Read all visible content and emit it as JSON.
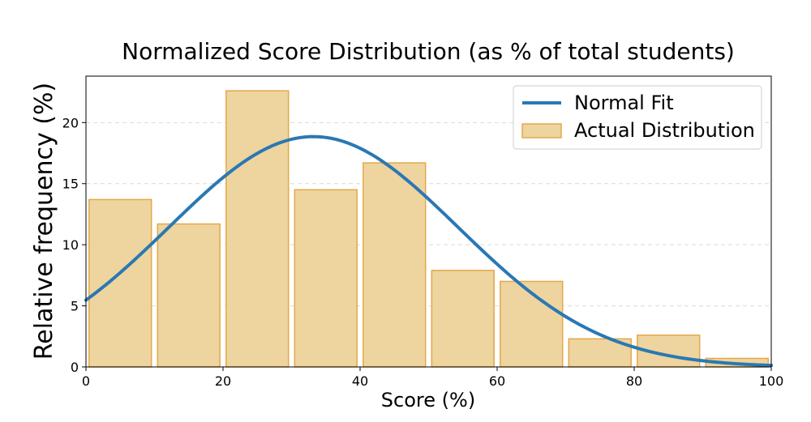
{
  "chart_data": {
    "type": "bar",
    "title": "Normalized Score Distribution (as % of total students)",
    "xlabel": "Score (%)",
    "ylabel": "Relative frequency (%)",
    "xlim": [
      0,
      100
    ],
    "ylim": [
      0,
      23.8
    ],
    "xticks": [
      0,
      20,
      40,
      60,
      80,
      100
    ],
    "yticks": [
      0,
      5,
      10,
      15,
      20
    ],
    "grid": "horizontal dashed",
    "legend_position": "top-right",
    "bins": [
      [
        0,
        10
      ],
      [
        10,
        20
      ],
      [
        20,
        30
      ],
      [
        30,
        40
      ],
      [
        40,
        50
      ],
      [
        50,
        60
      ],
      [
        60,
        70
      ],
      [
        70,
        80
      ],
      [
        80,
        90
      ],
      [
        90,
        100
      ]
    ],
    "series": [
      {
        "name": "Actual Distribution",
        "kind": "histogram",
        "values": [
          13.7,
          11.7,
          22.6,
          14.5,
          16.7,
          7.9,
          7.0,
          2.3,
          2.6,
          0.7
        ],
        "color": "#eed49e",
        "edge_color": "#e3a94a"
      },
      {
        "name": "Normal Fit",
        "kind": "line",
        "mean": 33.2,
        "std": 21.1,
        "color": "#2a78b4"
      }
    ]
  }
}
